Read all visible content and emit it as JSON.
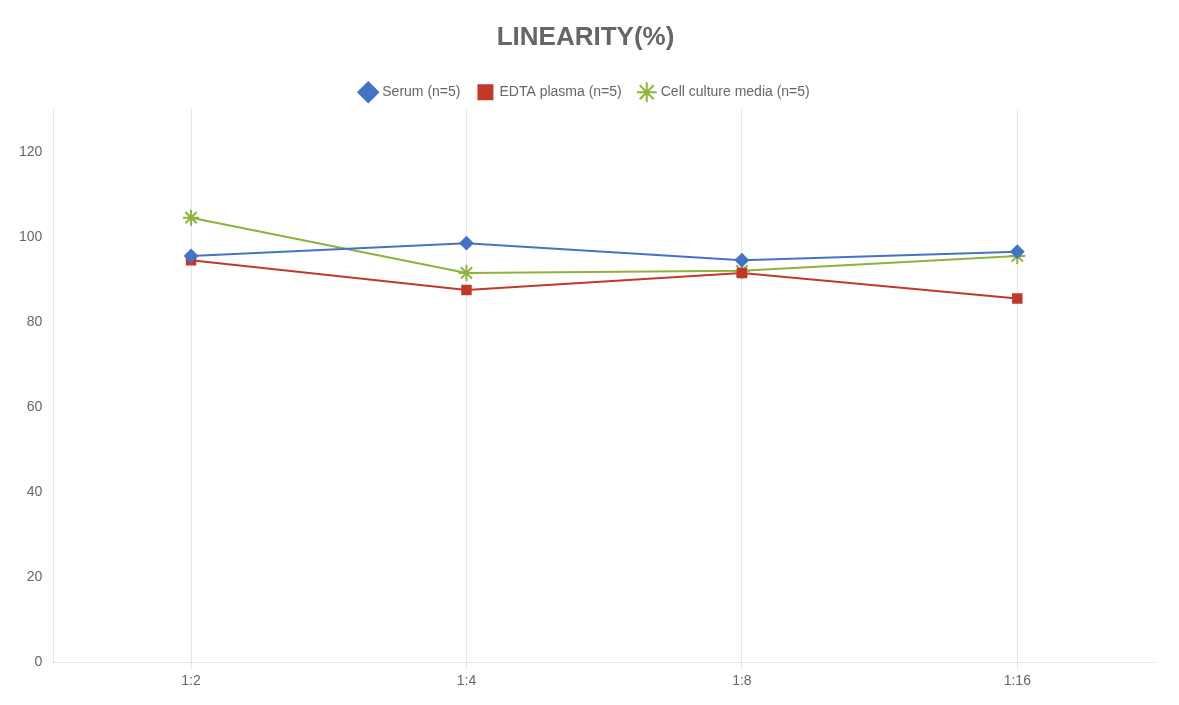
{
  "chart_data": {
    "type": "line",
    "title": "LINEARITY(%)",
    "categories": [
      "1:2",
      "1:4",
      "1:8",
      "1:16"
    ],
    "series": [
      {
        "name": "Serum (n=5)",
        "color": "#4472C4",
        "marker": "diamond",
        "values": [
          95.5,
          98.5,
          94.5,
          96.5
        ]
      },
      {
        "name": "EDTA plasma (n=5)",
        "color": "#C0392B",
        "marker": "square",
        "values": [
          94.5,
          87.5,
          91.5,
          85.5
        ]
      },
      {
        "name": "Cell culture media (n=5)",
        "color": "#8DB33A",
        "marker": "star",
        "values": [
          104.5,
          91.5,
          92.0,
          95.5
        ]
      }
    ],
    "ylim": [
      0,
      130
    ],
    "yticks": [
      0,
      20,
      40,
      60,
      80,
      100,
      120
    ],
    "grid": "x",
    "legend": "top"
  }
}
